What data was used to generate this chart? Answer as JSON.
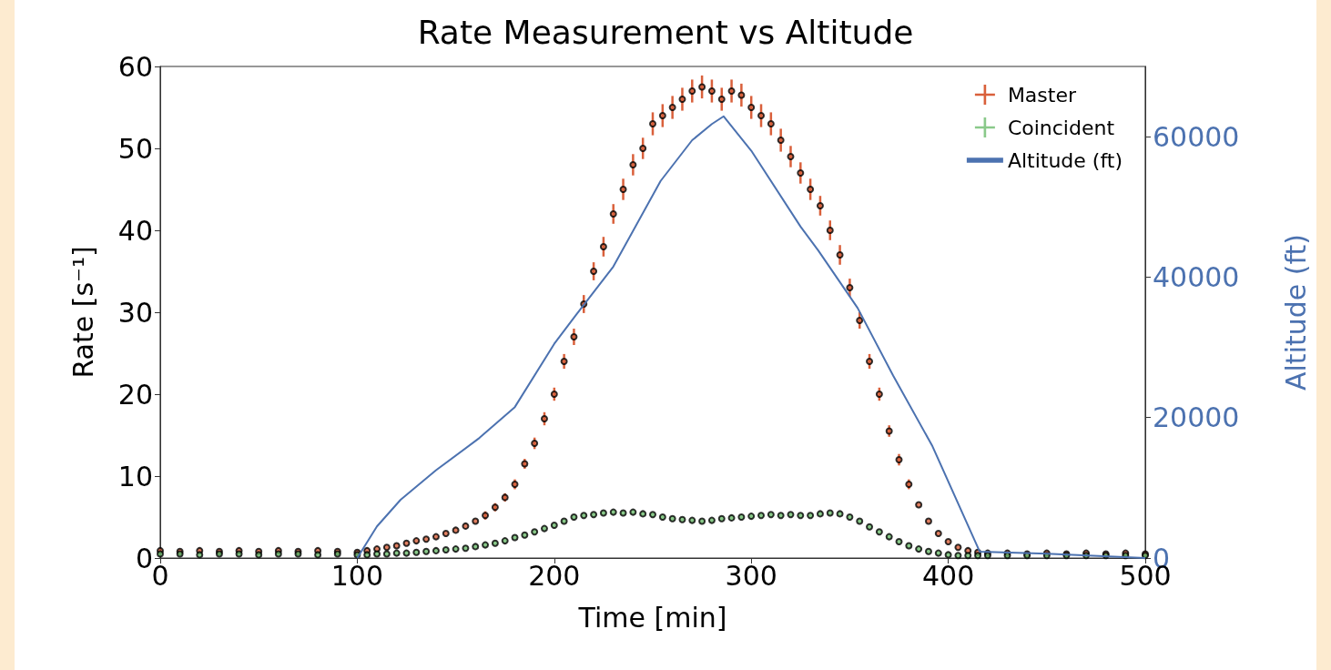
{
  "chart_data": {
    "type": "scatter",
    "title": "Rate Measurement vs Altitude",
    "xlabel": "Time [min]",
    "ylabel": "Rate [s⁻¹]",
    "y2label": "Altitude (ft)",
    "x": [
      0,
      10,
      20,
      30,
      40,
      50,
      60,
      70,
      80,
      90,
      100,
      105,
      110,
      115,
      120,
      125,
      130,
      135,
      140,
      145,
      150,
      155,
      160,
      165,
      170,
      175,
      180,
      185,
      190,
      195,
      200,
      205,
      210,
      215,
      220,
      225,
      230,
      235,
      240,
      245,
      250,
      255,
      260,
      265,
      270,
      275,
      280,
      285,
      290,
      295,
      300,
      305,
      310,
      315,
      320,
      325,
      330,
      335,
      340,
      345,
      350,
      355,
      360,
      365,
      370,
      375,
      380,
      385,
      390,
      395,
      400,
      405,
      410,
      415,
      420,
      430,
      440,
      450,
      460,
      470,
      480,
      490,
      500
    ],
    "series": [
      {
        "name": "Master",
        "color": "#d9603b",
        "values": [
          0.9,
          0.8,
          0.9,
          0.8,
          0.9,
          0.8,
          0.9,
          0.8,
          0.9,
          0.8,
          0.7,
          0.9,
          1.1,
          1.3,
          1.5,
          1.8,
          2.1,
          2.3,
          2.6,
          3,
          3.4,
          3.9,
          4.5,
          5.2,
          6.2,
          7.4,
          9,
          11.5,
          14,
          17,
          20,
          24,
          27,
          31,
          35,
          38,
          42,
          45,
          48,
          50,
          53,
          54,
          55,
          56,
          57,
          57.5,
          57,
          56,
          57,
          56.5,
          55,
          54,
          53,
          51,
          49,
          47,
          45,
          43,
          40,
          37,
          33,
          29,
          24,
          20,
          15.5,
          12,
          9,
          6.5,
          4.5,
          3,
          2,
          1.3,
          0.9,
          0.7,
          0.6,
          0.6,
          0.5,
          0.6,
          0.5,
          0.6,
          0.5,
          0.6,
          0.5
        ],
        "errors": [
          null,
          null,
          null,
          null,
          null,
          null,
          null,
          null,
          null,
          null,
          null,
          null,
          null,
          null,
          null,
          null,
          null,
          null,
          null,
          null,
          null,
          null,
          null,
          0.5,
          0.5,
          0.5,
          0.6,
          0.6,
          0.7,
          0.8,
          0.8,
          0.9,
          1.0,
          1.1,
          1.1,
          1.2,
          1.2,
          1.3,
          1.3,
          1.3,
          1.4,
          1.4,
          1.4,
          1.4,
          1.4,
          1.4,
          1.4,
          1.4,
          1.4,
          1.4,
          1.4,
          1.4,
          1.4,
          1.4,
          1.3,
          1.3,
          1.3,
          1.2,
          1.2,
          1.2,
          1.1,
          1.0,
          0.9,
          0.8,
          0.7,
          0.7,
          0.6,
          null,
          null,
          null,
          null,
          null,
          null,
          null,
          null,
          null,
          null,
          null,
          null,
          null,
          null,
          null,
          null
        ]
      },
      {
        "name": "Coincident",
        "color": "#6dbb6d",
        "values": [
          0.5,
          0.5,
          0.4,
          0.5,
          0.5,
          0.4,
          0.5,
          0.5,
          0.4,
          0.5,
          0.4,
          0.4,
          0.5,
          0.5,
          0.6,
          0.6,
          0.7,
          0.8,
          0.9,
          1.0,
          1.1,
          1.2,
          1.4,
          1.6,
          1.8,
          2.1,
          2.5,
          2.8,
          3.2,
          3.6,
          4.0,
          4.5,
          5.0,
          5.2,
          5.3,
          5.5,
          5.6,
          5.5,
          5.6,
          5.4,
          5.3,
          5.0,
          4.8,
          4.7,
          4.6,
          4.5,
          4.6,
          4.8,
          4.9,
          5.0,
          5.1,
          5.2,
          5.3,
          5.2,
          5.3,
          5.2,
          5.2,
          5.4,
          5.5,
          5.4,
          5.0,
          4.5,
          3.8,
          3.2,
          2.6,
          2.0,
          1.5,
          1.1,
          0.8,
          0.6,
          0.4,
          0.3,
          0.3,
          0.3,
          0.3,
          0.3,
          0.3,
          0.3,
          0.3,
          0.3,
          0.3,
          0.3,
          0.3
        ]
      },
      {
        "name": "Altitude (ft)",
        "type": "line",
        "axis": "y2",
        "marker": "none",
        "color": "#4c72b0",
        "x": [
          100,
          110,
          122,
          140,
          162,
          180,
          200,
          211,
          230,
          254,
          270,
          280,
          286,
          300,
          325,
          334,
          354,
          372,
          392,
          416,
          450,
          500
        ],
        "values": [
          0,
          4500,
          8300,
          12500,
          17100,
          21500,
          30500,
          34600,
          41500,
          53700,
          59500,
          61800,
          62900,
          58000,
          47200,
          43800,
          35600,
          26000,
          15900,
          900,
          600,
          0
        ]
      }
    ],
    "xlim": [
      0,
      500
    ],
    "xticks": [
      0,
      100,
      200,
      300,
      400,
      500
    ],
    "ylim": [
      0,
      60
    ],
    "yticks": [
      0,
      10,
      20,
      30,
      40,
      50,
      60
    ],
    "y2lim": [
      0,
      70000
    ],
    "y2ticks": [
      0,
      20000,
      40000,
      60000
    ],
    "grid": false,
    "legend": "top right",
    "marker": "circle"
  }
}
